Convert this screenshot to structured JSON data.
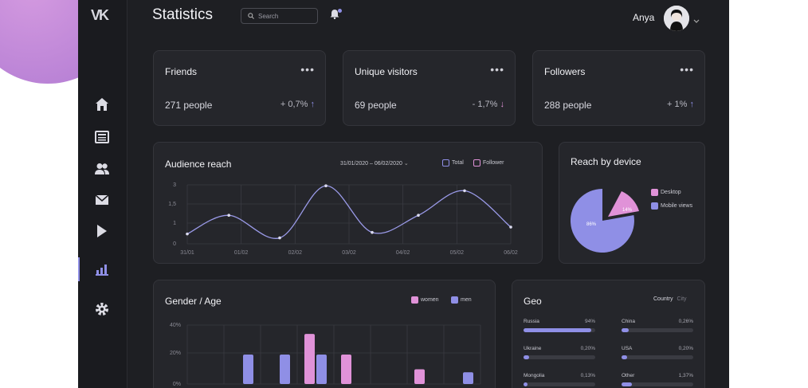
{
  "app": {
    "title": "Statistics",
    "logo": "VK"
  },
  "search": {
    "placeholder": "Search"
  },
  "user": {
    "name": "Anya"
  },
  "sidebar": {
    "items": [
      {
        "icon": "home-icon"
      },
      {
        "icon": "news-icon"
      },
      {
        "icon": "friends-icon"
      },
      {
        "icon": "messages-icon"
      },
      {
        "icon": "video-icon"
      },
      {
        "icon": "statistics-icon",
        "active": true
      },
      {
        "icon": "settings-icon"
      }
    ]
  },
  "stats": [
    {
      "title": "Friends",
      "value": "271 people",
      "change": "+ 0,7%",
      "direction": "up"
    },
    {
      "title": "Unique visitors",
      "value": "69 people",
      "change": "- 1,7%",
      "direction": "down"
    },
    {
      "title": "Followers",
      "value": "288 people",
      "change": "+ 1%",
      "direction": "up"
    }
  ],
  "audience": {
    "title": "Audience reach",
    "date_range": "31/01/2020 – 06/02/2020",
    "legend_total": "Total",
    "legend_follower": "Follower"
  },
  "device": {
    "title": "Reach by device",
    "desktop_label": "Desktop",
    "mobile_label": "Mobile views",
    "desktop_pct": "14%",
    "mobile_pct": "86%"
  },
  "gender": {
    "title": "Gender / Age",
    "legend_women": "women",
    "legend_men": "men"
  },
  "geo": {
    "title": "Geo",
    "tab_country": "Country",
    "tab_city": "City",
    "items": [
      {
        "name": "Russia",
        "pct": "94%",
        "fill": 0.94
      },
      {
        "name": "China",
        "pct": "0,26%",
        "fill": 0.1
      },
      {
        "name": "Ukraine",
        "pct": "0,20%",
        "fill": 0.08
      },
      {
        "name": "USA",
        "pct": "0,20%",
        "fill": 0.08
      },
      {
        "name": "Mongolia",
        "pct": "0,13%",
        "fill": 0.06
      },
      {
        "name": "Other",
        "pct": "1,37%",
        "fill": 0.14
      }
    ]
  },
  "colors": {
    "accent": "#8f8fe6",
    "pink": "#e092d8",
    "background": "#1e1f23",
    "card": "#25262b"
  },
  "chart_data": [
    {
      "type": "line",
      "title": "Audience reach",
      "x": [
        "31/01",
        "01/02",
        "02/02",
        "03/02",
        "04/02",
        "05/02",
        "06/02"
      ],
      "ylim": [
        0,
        3
      ],
      "yticks": [
        "3",
        "1,5",
        "1",
        "0"
      ],
      "series": [
        {
          "name": "Total",
          "points": [
            [
              0,
              0.5
            ],
            [
              0.9,
              1.45
            ],
            [
              2.0,
              0.3
            ],
            [
              3.0,
              2.95
            ],
            [
              4.0,
              0.58
            ],
            [
              5.0,
              1.45
            ],
            [
              6.0,
              2.7
            ],
            [
              7.0,
              0.85
            ]
          ]
        }
      ],
      "grid": true
    },
    {
      "type": "pie",
      "title": "Reach by device",
      "labels": [
        "Desktop",
        "Mobile views"
      ],
      "values": [
        14,
        86
      ],
      "data_labels": [
        "14%",
        "86%"
      ]
    },
    {
      "type": "bar",
      "title": "Gender / Age",
      "yticks": [
        "40%",
        "20%",
        "0%"
      ],
      "ylim": [
        0,
        40
      ],
      "series": [
        {
          "name": "women",
          "values": [
            0,
            0,
            0,
            34,
            20,
            0,
            10,
            0
          ]
        },
        {
          "name": "men",
          "values": [
            0,
            20,
            20,
            20,
            0,
            0,
            0,
            8
          ]
        }
      ]
    }
  ]
}
